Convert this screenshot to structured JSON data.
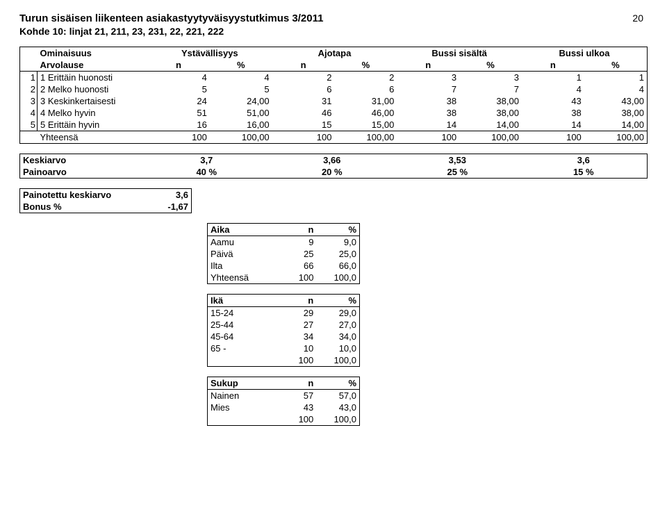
{
  "header": {
    "title": "Turun sisäisen liikenteen asiakastyytyväisyystutkimus 3/2011",
    "subtitle": "Kohde 10: linjat 21, 211, 23, 231, 22, 221, 222",
    "page_number": "20"
  },
  "main_table": {
    "property_header": "Ominaisuus",
    "value_header": "Arvolause",
    "groups": [
      "Ystävällisyys",
      "Ajotapa",
      "Bussi sisältä",
      "Bussi ulkoa"
    ],
    "sub_headers": [
      "n",
      "%",
      "n",
      "%",
      "n",
      "%",
      "n",
      "%"
    ],
    "rows": [
      {
        "idx": "1",
        "label": "1 Erittäin huonosti",
        "cells": [
          "4",
          "4",
          "2",
          "2",
          "3",
          "3",
          "1",
          "1"
        ]
      },
      {
        "idx": "2",
        "label": "2 Melko huonosti",
        "cells": [
          "5",
          "5",
          "6",
          "6",
          "7",
          "7",
          "4",
          "4"
        ]
      },
      {
        "idx": "3",
        "label": "3 Keskinkertaisesti",
        "cells": [
          "24",
          "24,00",
          "31",
          "31,00",
          "38",
          "38,00",
          "43",
          "43,00"
        ]
      },
      {
        "idx": "4",
        "label": "4 Melko hyvin",
        "cells": [
          "51",
          "51,00",
          "46",
          "46,00",
          "38",
          "38,00",
          "38",
          "38,00"
        ]
      },
      {
        "idx": "5",
        "label": "5 Erittäin hyvin",
        "cells": [
          "16",
          "16,00",
          "15",
          "15,00",
          "14",
          "14,00",
          "14",
          "14,00"
        ]
      }
    ],
    "total_label": "Yhteensä",
    "total_cells": [
      "100",
      "100,00",
      "100",
      "100,00",
      "100",
      "100,00",
      "100",
      "100,00"
    ]
  },
  "mid_table": {
    "rows": [
      {
        "label": "Keskiarvo",
        "values": [
          "3,7",
          "3,66",
          "3,53",
          "3,6"
        ]
      },
      {
        "label": "Painoarvo",
        "values": [
          "40 %",
          "20 %",
          "25 %",
          "15 %"
        ]
      }
    ]
  },
  "weighted": {
    "rows": [
      {
        "label": "Painotettu keskiarvo",
        "value": "3,6"
      },
      {
        "label": "Bonus %",
        "value": "-1,67"
      }
    ]
  },
  "small_tables": [
    {
      "head": [
        "Aika",
        "n",
        "%"
      ],
      "rows": [
        [
          "Aamu",
          "9",
          "9,0"
        ],
        [
          "Päivä",
          "25",
          "25,0"
        ],
        [
          "Ilta",
          "66",
          "66,0"
        ],
        [
          "Yhteensä",
          "100",
          "100,0"
        ]
      ]
    },
    {
      "head": [
        "Ikä",
        "n",
        "%"
      ],
      "rows": [
        [
          "15-24",
          "29",
          "29,0"
        ],
        [
          "25-44",
          "27",
          "27,0"
        ],
        [
          "45-64",
          "34",
          "34,0"
        ],
        [
          "65 -",
          "10",
          "10,0"
        ],
        [
          "",
          "100",
          "100,0"
        ]
      ]
    },
    {
      "head": [
        "Sukup",
        "n",
        "%"
      ],
      "rows": [
        [
          "Nainen",
          "57",
          "57,0"
        ],
        [
          "Mies",
          "43",
          "43,0"
        ],
        [
          "",
          "100",
          "100,0"
        ]
      ]
    }
  ]
}
